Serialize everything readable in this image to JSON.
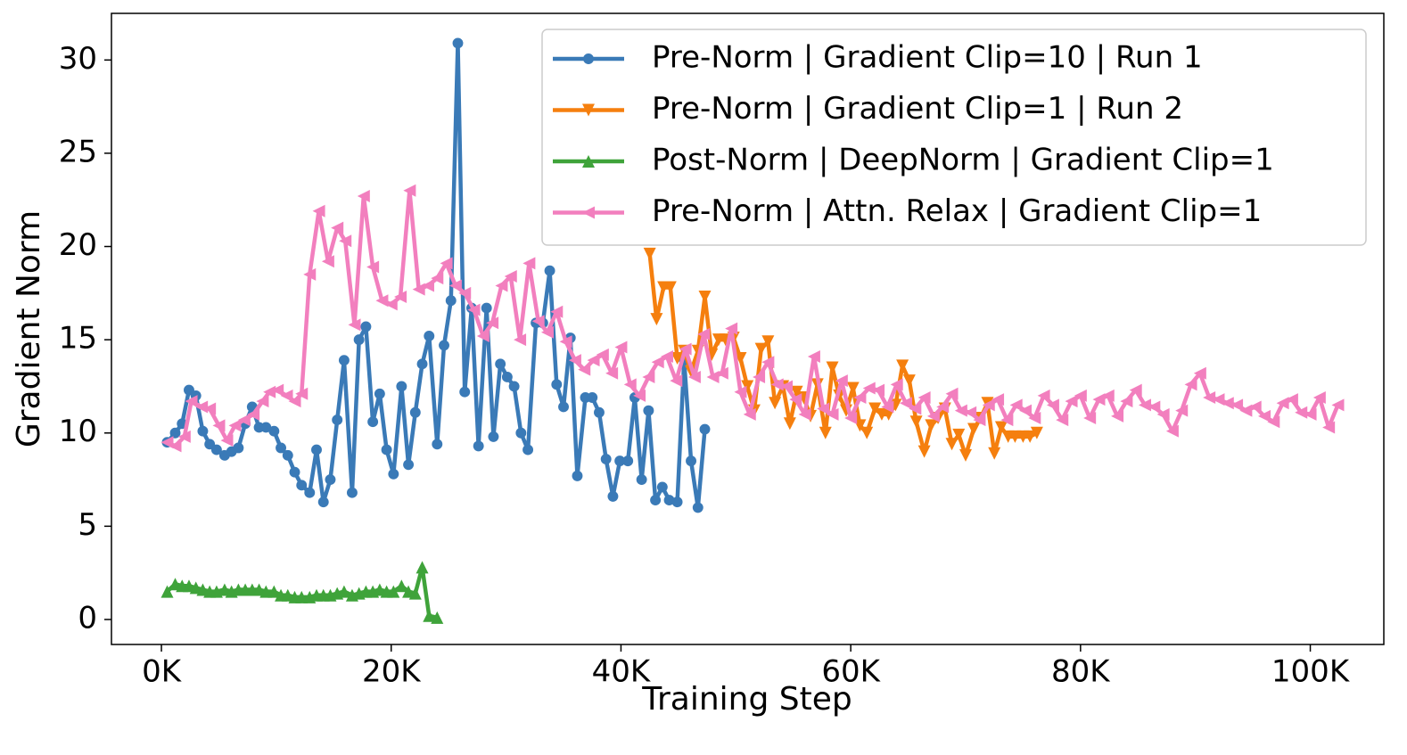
{
  "chart_data": {
    "type": "line",
    "xlabel": "Training Step",
    "ylabel": "Gradient Norm",
    "xlim": [
      -4350,
      106400
    ],
    "ylim": [
      -1.34,
      32.5
    ],
    "xticks": [
      {
        "value": 0,
        "label": "0K"
      },
      {
        "value": 20000,
        "label": "20K"
      },
      {
        "value": 40000,
        "label": "40K"
      },
      {
        "value": 60000,
        "label": "60K"
      },
      {
        "value": 80000,
        "label": "80K"
      },
      {
        "value": 100000,
        "label": "100K"
      }
    ],
    "yticks": [
      0,
      5,
      10,
      15,
      20,
      25,
      30
    ],
    "grid": false,
    "legend": "upper right",
    "series": [
      {
        "name": "Pre-Norm | Gradient Clip=10 | Run 1",
        "color": "#3a7ab7",
        "marker": "circle",
        "x": [
          500,
          1200,
          1800,
          2400,
          3000,
          3600,
          4200,
          4800,
          5500,
          6100,
          6700,
          7300,
          7900,
          8500,
          9100,
          9800,
          10400,
          11000,
          11600,
          12200,
          12900,
          13500,
          14100,
          14700,
          15300,
          15900,
          16600,
          17200,
          17800,
          18400,
          19000,
          19600,
          20200,
          20900,
          21500,
          22100,
          22700,
          23300,
          24000,
          24600,
          25200,
          25800,
          26400,
          27000,
          27600,
          28300,
          28900,
          29500,
          30100,
          30700,
          31300,
          31900,
          32600,
          33200,
          33800,
          34400,
          35000,
          35600,
          36200,
          36900,
          37500,
          38100,
          38700,
          39300,
          39900,
          40600,
          41200,
          41800,
          42400,
          43000,
          43600,
          44200,
          44900,
          45500,
          46100,
          46700,
          47300
        ],
        "values": [
          9.5,
          10.0,
          10.5,
          12.3,
          12.0,
          10.1,
          9.4,
          9.1,
          8.8,
          9.0,
          9.2,
          10.5,
          11.4,
          10.3,
          10.3,
          10.1,
          9.2,
          8.8,
          7.9,
          7.2,
          6.8,
          9.1,
          6.3,
          7.5,
          10.7,
          13.9,
          6.8,
          15.0,
          15.7,
          10.6,
          12.1,
          9.1,
          7.8,
          12.5,
          8.3,
          11.1,
          13.7,
          15.2,
          9.4,
          14.7,
          17.1,
          30.9,
          12.2,
          16.7,
          9.3,
          16.7,
          9.8,
          13.7,
          13.0,
          12.5,
          10.0,
          9.1,
          15.9,
          15.9,
          18.7,
          12.6,
          11.4,
          15.1,
          7.7,
          11.9,
          11.9,
          11.1,
          8.6,
          6.6,
          8.5,
          8.5,
          11.9,
          7.5,
          11.2,
          6.4,
          7.1,
          6.4,
          6.3,
          13.9,
          8.5,
          6.0,
          10.2
        ]
      },
      {
        "name": "Pre-Norm | Gradient Clip=1 | Run 2",
        "color": "#f57f0e",
        "marker": "triangle-down",
        "x": [
          42500,
          43100,
          43700,
          44300,
          44900,
          45500,
          46100,
          46700,
          47300,
          47900,
          48500,
          49100,
          49800,
          50400,
          51000,
          51600,
          52200,
          52800,
          53400,
          54100,
          54700,
          55300,
          55900,
          56500,
          57100,
          57800,
          58400,
          59000,
          59600,
          60200,
          60800,
          61400,
          62100,
          62700,
          63300,
          63900,
          64500,
          65100,
          65700,
          66400,
          67000,
          67600,
          68200,
          68800,
          69400,
          70000,
          70700,
          71300,
          71900,
          72500,
          73100,
          73700,
          74300,
          75000,
          75600,
          76200
        ],
        "values": [
          19.6,
          16.1,
          17.8,
          17.8,
          14.0,
          14.4,
          13.3,
          14.4,
          17.3,
          14.2,
          15.0,
          15.0,
          15.1,
          14.0,
          12.5,
          11.2,
          14.5,
          14.9,
          11.6,
          12.5,
          10.5,
          12.2,
          11.9,
          10.9,
          12.6,
          10.0,
          13.5,
          12.0,
          11.2,
          12.4,
          10.4,
          10.0,
          11.3,
          11.0,
          11.0,
          11.5,
          13.6,
          12.8,
          10.6,
          9.0,
          10.4,
          10.8,
          11.3,
          9.4,
          9.9,
          8.8,
          10.2,
          10.8,
          11.6,
          8.9,
          10.3,
          9.8,
          9.8,
          9.8,
          9.8,
          10.0
        ]
      },
      {
        "name": "Post-Norm | DeepNorm | Gradient Clip=1",
        "color": "#3fa33a",
        "marker": "triangle-up",
        "x": [
          500,
          1200,
          1800,
          2400,
          3000,
          3600,
          4200,
          4800,
          5500,
          6100,
          6700,
          7300,
          7900,
          8500,
          9100,
          9800,
          10400,
          11000,
          11600,
          12200,
          12900,
          13500,
          14100,
          14700,
          15300,
          15900,
          16600,
          17200,
          17800,
          18400,
          19000,
          19600,
          20200,
          20900,
          21500,
          22100,
          22700,
          23300,
          24000
        ],
        "values": [
          1.5,
          1.9,
          1.8,
          1.8,
          1.7,
          1.6,
          1.5,
          1.5,
          1.6,
          1.5,
          1.6,
          1.6,
          1.6,
          1.6,
          1.5,
          1.5,
          1.3,
          1.3,
          1.2,
          1.2,
          1.2,
          1.3,
          1.3,
          1.3,
          1.4,
          1.5,
          1.3,
          1.4,
          1.5,
          1.5,
          1.6,
          1.5,
          1.5,
          1.8,
          1.5,
          1.4,
          2.8,
          0.2,
          0.1
        ]
      },
      {
        "name": "Pre-Norm | Attn. Relax | Gradient Clip=1",
        "color": "#f27fbe",
        "marker": "triangle-left",
        "x": [
          500,
          1200,
          2000,
          2600,
          3500,
          4200,
          5000,
          5700,
          6400,
          7200,
          8000,
          8800,
          9400,
          10100,
          10900,
          11600,
          12200,
          12900,
          13700,
          14500,
          15300,
          16000,
          16800,
          17600,
          18400,
          19200,
          20000,
          20800,
          21600,
          22400,
          23200,
          24000,
          24800,
          25600,
          26400,
          27200,
          28000,
          28800,
          29600,
          30400,
          31200,
          32000,
          32800,
          33600,
          34400,
          35200,
          36000,
          36800,
          37600,
          38400,
          39200,
          40000,
          40800,
          41600,
          42400,
          43200,
          44000,
          44800,
          45600,
          46400,
          47200,
          48000,
          48800,
          49600,
          50400,
          51200,
          52000,
          52800,
          53600,
          54400,
          55200,
          56000,
          56800,
          57600,
          58400,
          59200,
          60000,
          60800,
          61600,
          62400,
          63200,
          64000,
          64800,
          65600,
          66400,
          67200,
          68000,
          68800,
          69600,
          70400,
          71200,
          72000,
          72800,
          73600,
          74400,
          75200,
          76000,
          76800,
          77600,
          78400,
          79200,
          80000,
          80800,
          81600,
          82400,
          83200,
          84000,
          84800,
          85600,
          86400,
          87200,
          88000,
          88800,
          89600,
          90400,
          91200,
          92000,
          92800,
          93600,
          94400,
          95200,
          96000,
          96800,
          97600,
          98400,
          99200,
          100000,
          100800,
          101600,
          102400
        ],
        "values": [
          9.5,
          9.3,
          9.8,
          11.7,
          11.4,
          11.3,
          10.4,
          9.6,
          10.4,
          10.7,
          11.0,
          11.7,
          12.2,
          12.3,
          12.0,
          11.7,
          12.1,
          18.5,
          21.9,
          19.2,
          21.0,
          20.3,
          15.8,
          22.7,
          18.9,
          17.1,
          16.9,
          17.3,
          23.0,
          17.7,
          17.9,
          18.3,
          19.1,
          17.9,
          17.5,
          16.6,
          15.2,
          15.9,
          17.9,
          18.4,
          15.0,
          19.1,
          16.0,
          15.4,
          16.5,
          14.9,
          13.9,
          13.4,
          13.9,
          14.2,
          13.2,
          14.6,
          12.6,
          12.0,
          13.0,
          13.8,
          14.1,
          12.8,
          14.5,
          13.0,
          15.3,
          13.0,
          13.2,
          15.6,
          12.2,
          11.0,
          13.0,
          13.8,
          12.6,
          12.5,
          11.8,
          11.0,
          14.1,
          11.3,
          11.0,
          12.8,
          10.8,
          11.9,
          12.4,
          12.3,
          11.4,
          12.6,
          11.6,
          11.3,
          11.9,
          10.9,
          11.4,
          12.1,
          11.2,
          11.1,
          10.7,
          11.5,
          11.8,
          10.7,
          11.5,
          11.2,
          10.8,
          12.0,
          11.5,
          10.7,
          11.7,
          12.0,
          10.8,
          11.8,
          12.0,
          10.9,
          11.7,
          12.3,
          11.5,
          11.4,
          11.0,
          10.1,
          11.2,
          12.6,
          13.2,
          11.9,
          11.8,
          11.6,
          11.5,
          11.2,
          11.4,
          10.9,
          10.6,
          11.6,
          11.8,
          11.1,
          11.0,
          11.9,
          10.3,
          11.5
        ]
      }
    ]
  }
}
